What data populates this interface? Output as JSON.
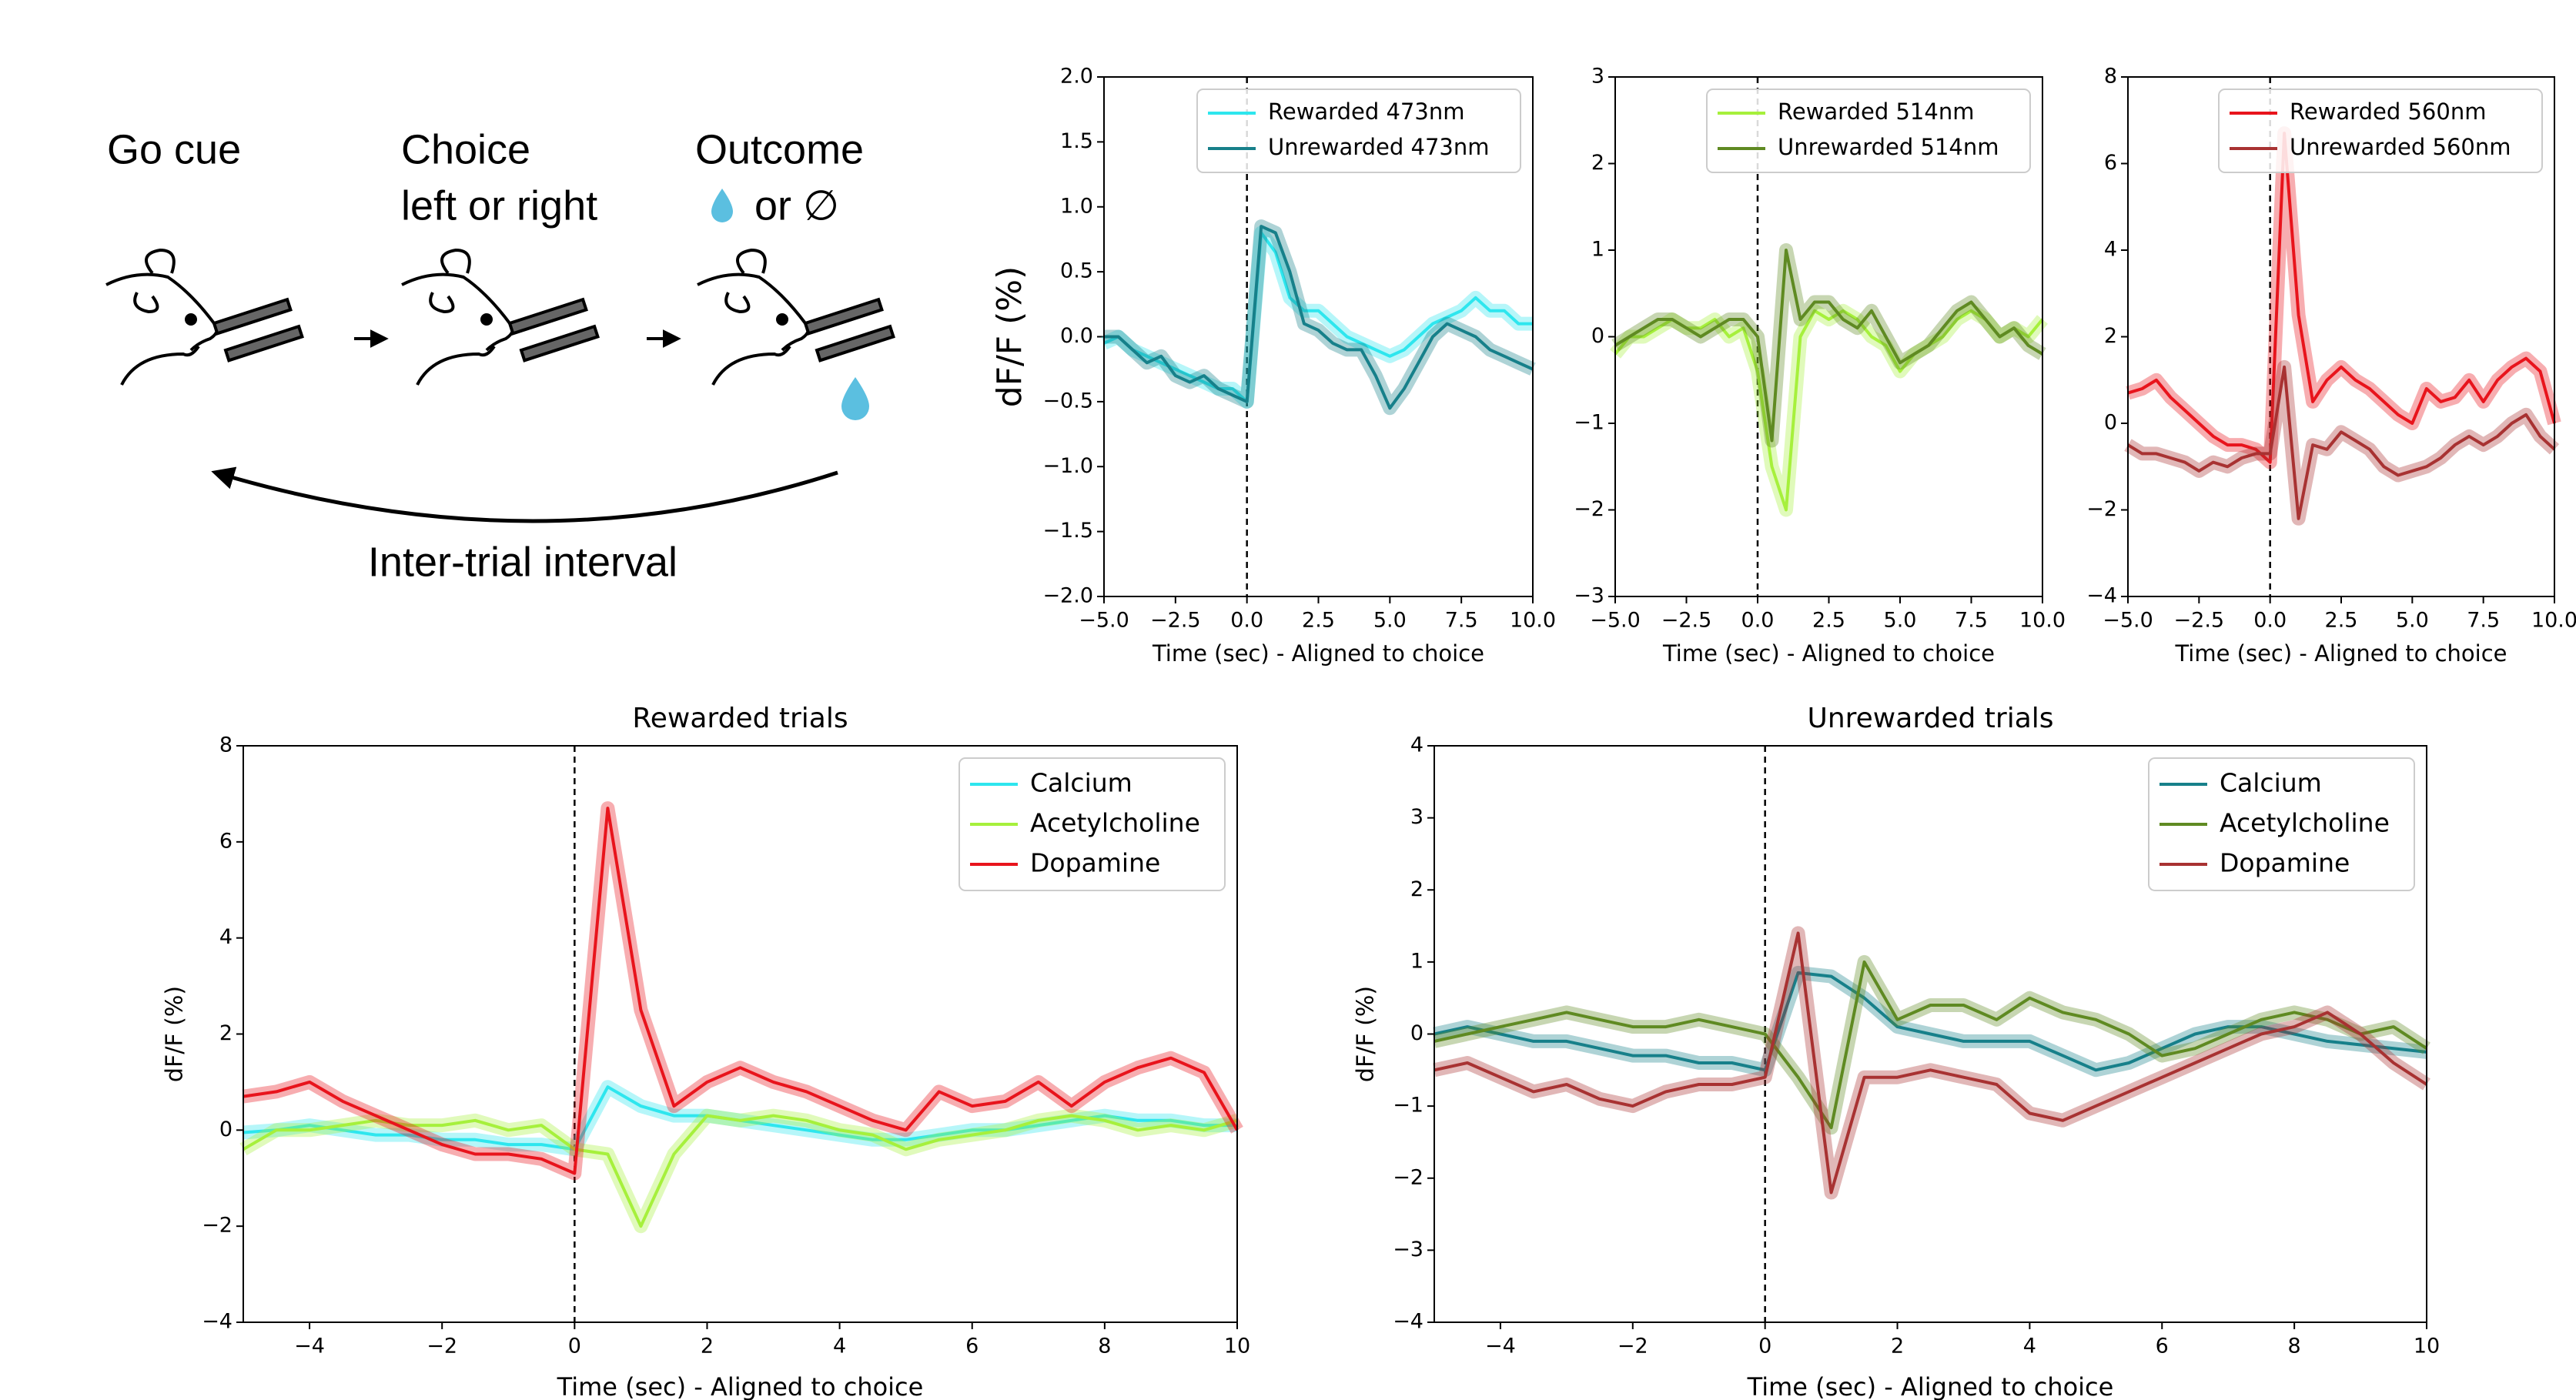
{
  "diagram": {
    "go_cue": "Go cue",
    "choice": "Choice",
    "choice_sub": "left or right",
    "outcome": "Outcome",
    "outcome_sub": "or ∅",
    "interval": "Inter-trial interval"
  },
  "chart_data": [
    {
      "type": "line",
      "ylabel": "dF/F (%)",
      "xlabel": "Time (sec) - Aligned to choice",
      "legend": "upper right",
      "vline": 0,
      "xlim": [
        -5,
        10
      ],
      "ylim": [
        -2,
        2
      ],
      "xticks": [
        {
          "value": -5,
          "label": "−5.0"
        },
        {
          "value": -2.5,
          "label": "−2.5"
        },
        {
          "value": 0,
          "label": "0.0"
        },
        {
          "value": 2.5,
          "label": "2.5"
        },
        {
          "value": 5,
          "label": "5.0"
        },
        {
          "value": 7.5,
          "label": "7.5"
        },
        {
          "value": 10,
          "label": "10.0"
        }
      ],
      "yticks": [
        {
          "value": -2,
          "label": "−2.0"
        },
        {
          "value": -1.5,
          "label": "−1.5"
        },
        {
          "value": -1,
          "label": "−1.0"
        },
        {
          "value": -0.5,
          "label": "−0.5"
        },
        {
          "value": 0,
          "label": "0.0"
        },
        {
          "value": 0.5,
          "label": "0.5"
        },
        {
          "value": 1,
          "label": "1.0"
        },
        {
          "value": 1.5,
          "label": "1.5"
        },
        {
          "value": 2,
          "label": "2.0"
        }
      ],
      "x": [
        -5,
        -4.5,
        -4,
        -3.5,
        -3,
        -2.5,
        -2,
        -1.5,
        -1,
        -0.5,
        0,
        0.5,
        1,
        1.5,
        2,
        2.5,
        3,
        3.5,
        4,
        4.5,
        5,
        5.5,
        6,
        6.5,
        7,
        7.5,
        8,
        8.5,
        9,
        9.5,
        10
      ],
      "series": [
        {
          "name": "Rewarded 473nm",
          "color": "#2ee6ee",
          "values": [
            -0.05,
            0,
            -0.1,
            -0.15,
            -0.2,
            -0.25,
            -0.3,
            -0.35,
            -0.4,
            -0.4,
            -0.5,
            0.8,
            0.65,
            0.3,
            0.2,
            0.2,
            0.1,
            0,
            -0.05,
            -0.1,
            -0.15,
            -0.1,
            0,
            0.1,
            0.15,
            0.2,
            0.3,
            0.2,
            0.2,
            0.1,
            0.1
          ]
        },
        {
          "name": "Unrewarded 473nm",
          "color": "#17808a",
          "values": [
            0,
            0,
            -0.1,
            -0.2,
            -0.15,
            -0.3,
            -0.35,
            -0.3,
            -0.4,
            -0.45,
            -0.5,
            0.85,
            0.8,
            0.5,
            0.1,
            0.05,
            -0.05,
            -0.1,
            -0.1,
            -0.3,
            -0.55,
            -0.4,
            -0.2,
            0,
            0.1,
            0.05,
            0,
            -0.1,
            -0.15,
            -0.2,
            -0.25
          ]
        }
      ]
    },
    {
      "type": "line",
      "xlabel": "Time (sec) - Aligned to choice",
      "legend": "upper right",
      "vline": 0,
      "xlim": [
        -5,
        10
      ],
      "ylim": [
        -3,
        3
      ],
      "xticks": [
        {
          "value": -5,
          "label": "−5.0"
        },
        {
          "value": -2.5,
          "label": "−2.5"
        },
        {
          "value": 0,
          "label": "0.0"
        },
        {
          "value": 2.5,
          "label": "2.5"
        },
        {
          "value": 5,
          "label": "5.0"
        },
        {
          "value": 7.5,
          "label": "7.5"
        },
        {
          "value": 10,
          "label": "10.0"
        }
      ],
      "yticks": [
        {
          "value": -3,
          "label": "−3"
        },
        {
          "value": -2,
          "label": "−2"
        },
        {
          "value": -1,
          "label": "−1"
        },
        0,
        1,
        2,
        3
      ],
      "x": [
        -5,
        -4.5,
        -4,
        -3.5,
        -3,
        -2.5,
        -2,
        -1.5,
        -1,
        -0.5,
        0,
        0.5,
        1,
        1.5,
        2,
        2.5,
        3,
        3.5,
        4,
        4.5,
        5,
        5.5,
        6,
        6.5,
        7,
        7.5,
        8,
        8.5,
        9,
        9.5,
        10
      ],
      "series": [
        {
          "name": "Rewarded 514nm",
          "color": "#a6f03c",
          "values": [
            -0.2,
            0,
            0,
            0.1,
            0.2,
            0.1,
            0.1,
            0.2,
            0,
            0.1,
            -0.4,
            -1.5,
            -2.0,
            0,
            0.3,
            0.2,
            0.3,
            0.2,
            0,
            -0.1,
            -0.4,
            -0.2,
            -0.1,
            0,
            0.2,
            0.3,
            0.2,
            0,
            0.1,
            0,
            0.2
          ]
        },
        {
          "name": "Unrewarded 514nm",
          "color": "#5f8a22",
          "values": [
            -0.1,
            0,
            0.1,
            0.2,
            0.2,
            0.1,
            0,
            0.1,
            0.2,
            0.2,
            0,
            -1.2,
            1.0,
            0.2,
            0.4,
            0.4,
            0.2,
            0.1,
            0.3,
            0,
            -0.3,
            -0.2,
            -0.1,
            0.1,
            0.3,
            0.4,
            0.2,
            0,
            0.1,
            -0.1,
            -0.2
          ]
        }
      ]
    },
    {
      "type": "line",
      "xlabel": "Time (sec) - Aligned to choice",
      "legend": "upper right",
      "vline": 0,
      "xlim": [
        -5,
        10
      ],
      "ylim": [
        -4,
        8
      ],
      "xticks": [
        {
          "value": -5,
          "label": "−5.0"
        },
        {
          "value": -2.5,
          "label": "−2.5"
        },
        {
          "value": 0,
          "label": "0.0"
        },
        {
          "value": 2.5,
          "label": "2.5"
        },
        {
          "value": 5,
          "label": "5.0"
        },
        {
          "value": 7.5,
          "label": "7.5"
        },
        {
          "value": 10,
          "label": "10.0"
        }
      ],
      "yticks": [
        {
          "value": -4,
          "label": "−4"
        },
        {
          "value": -2,
          "label": "−2"
        },
        0,
        2,
        4,
        6,
        8
      ],
      "x": [
        -5,
        -4.5,
        -4,
        -3.5,
        -3,
        -2.5,
        -2,
        -1.5,
        -1,
        -0.5,
        0,
        0.5,
        1,
        1.5,
        2,
        2.5,
        3,
        3.5,
        4,
        4.5,
        5,
        5.5,
        6,
        6.5,
        7,
        7.5,
        8,
        8.5,
        9,
        9.5,
        10
      ],
      "series": [
        {
          "name": "Rewarded 560nm",
          "color": "#e8141c",
          "values": [
            0.7,
            0.8,
            1.0,
            0.6,
            0.3,
            0,
            -0.3,
            -0.5,
            -0.5,
            -0.6,
            -0.9,
            6.7,
            2.5,
            0.5,
            1.0,
            1.3,
            1.0,
            0.8,
            0.5,
            0.2,
            0,
            0.8,
            0.5,
            0.6,
            1.0,
            0.5,
            1.0,
            1.3,
            1.5,
            1.2,
            0
          ]
        },
        {
          "name": "Unrewarded 560nm",
          "color": "#a83232",
          "values": [
            -0.5,
            -0.7,
            -0.7,
            -0.8,
            -0.9,
            -1.1,
            -0.9,
            -1.0,
            -0.8,
            -0.7,
            -0.7,
            1.3,
            -2.2,
            -0.5,
            -0.6,
            -0.2,
            -0.4,
            -0.6,
            -1.0,
            -1.2,
            -1.1,
            -1.0,
            -0.8,
            -0.5,
            -0.3,
            -0.5,
            -0.3,
            0,
            0.2,
            -0.3,
            -0.6
          ]
        }
      ]
    },
    {
      "type": "line",
      "title": "Rewarded trials",
      "ylabel": "dF/F (%)",
      "xlabel": "Time (sec) - Aligned to choice",
      "legend": "upper right",
      "vline": 0,
      "xlim": [
        -5,
        10
      ],
      "ylim": [
        -4,
        8
      ],
      "xticks": [
        {
          "value": -4,
          "label": "−4"
        },
        {
          "value": -2,
          "label": "−2"
        },
        0,
        2,
        4,
        6,
        8,
        10
      ],
      "yticks": [
        {
          "value": -4,
          "label": "−4"
        },
        {
          "value": -2,
          "label": "−2"
        },
        0,
        2,
        4,
        6,
        8
      ],
      "x": [
        -5,
        -4.5,
        -4,
        -3.5,
        -3,
        -2.5,
        -2,
        -1.5,
        -1,
        -0.5,
        0,
        0.5,
        1,
        1.5,
        2,
        2.5,
        3,
        3.5,
        4,
        4.5,
        5,
        5.5,
        6,
        6.5,
        7,
        7.5,
        8,
        8.5,
        9,
        9.5,
        10
      ],
      "series": [
        {
          "name": "Calcium",
          "color": "#2ee6ee",
          "values": [
            -0.05,
            0,
            0.1,
            0,
            -0.1,
            -0.1,
            -0.2,
            -0.2,
            -0.3,
            -0.3,
            -0.4,
            0.9,
            0.5,
            0.3,
            0.3,
            0.2,
            0.1,
            0,
            -0.1,
            -0.2,
            -0.2,
            -0.1,
            0,
            0,
            0.1,
            0.2,
            0.3,
            0.2,
            0.2,
            0.1,
            0.1
          ]
        },
        {
          "name": "Acetylcholine",
          "color": "#a6f03c",
          "values": [
            -0.4,
            0,
            0,
            0.1,
            0.2,
            0.1,
            0.1,
            0.2,
            0,
            0.1,
            -0.4,
            -0.5,
            -2.0,
            -0.5,
            0.3,
            0.2,
            0.3,
            0.2,
            0,
            -0.1,
            -0.4,
            -0.2,
            -0.1,
            0,
            0.2,
            0.3,
            0.2,
            0,
            0.1,
            0,
            0.2
          ]
        },
        {
          "name": "Dopamine",
          "color": "#e8141c",
          "values": [
            0.7,
            0.8,
            1.0,
            0.6,
            0.3,
            0,
            -0.3,
            -0.5,
            -0.5,
            -0.6,
            -0.9,
            6.7,
            2.5,
            0.5,
            1.0,
            1.3,
            1.0,
            0.8,
            0.5,
            0.2,
            0,
            0.8,
            0.5,
            0.6,
            1.0,
            0.5,
            1.0,
            1.3,
            1.5,
            1.2,
            0
          ]
        }
      ]
    },
    {
      "type": "line",
      "title": "Unrewarded trials",
      "ylabel": "dF/F (%)",
      "xlabel": "Time (sec) - Aligned to choice",
      "legend": "upper right",
      "vline": 0,
      "xlim": [
        -5,
        10
      ],
      "ylim": [
        -4,
        4
      ],
      "xticks": [
        {
          "value": -4,
          "label": "−4"
        },
        {
          "value": -2,
          "label": "−2"
        },
        0,
        2,
        4,
        6,
        8,
        10
      ],
      "yticks": [
        {
          "value": -4,
          "label": "−4"
        },
        {
          "value": -3,
          "label": "−3"
        },
        {
          "value": -2,
          "label": "−2"
        },
        {
          "value": -1,
          "label": "−1"
        },
        0,
        1,
        2,
        3,
        4
      ],
      "x": [
        -5,
        -4.5,
        -4,
        -3.5,
        -3,
        -2.5,
        -2,
        -1.5,
        -1,
        -0.5,
        0,
        0.5,
        1,
        1.5,
        2,
        2.5,
        3,
        3.5,
        4,
        4.5,
        5,
        5.5,
        6,
        6.5,
        7,
        7.5,
        8,
        8.5,
        9,
        9.5,
        10
      ],
      "series": [
        {
          "name": "Calcium",
          "color": "#17808a",
          "values": [
            0,
            0.1,
            0,
            -0.1,
            -0.1,
            -0.2,
            -0.3,
            -0.3,
            -0.4,
            -0.4,
            -0.5,
            0.85,
            0.8,
            0.5,
            0.1,
            0,
            -0.1,
            -0.1,
            -0.1,
            -0.3,
            -0.5,
            -0.4,
            -0.2,
            0,
            0.1,
            0.1,
            0,
            -0.1,
            -0.15,
            -0.2,
            -0.25
          ]
        },
        {
          "name": "Acetylcholine",
          "color": "#5f8a22",
          "values": [
            -0.1,
            0,
            0.1,
            0.2,
            0.3,
            0.2,
            0.1,
            0.1,
            0.2,
            0.1,
            0,
            -0.6,
            -1.3,
            1.0,
            0.2,
            0.4,
            0.4,
            0.2,
            0.5,
            0.3,
            0.2,
            0,
            -0.3,
            -0.2,
            0,
            0.2,
            0.3,
            0.2,
            0,
            0.1,
            -0.2
          ]
        },
        {
          "name": "Dopamine",
          "color": "#a83232",
          "values": [
            -0.5,
            -0.4,
            -0.6,
            -0.8,
            -0.7,
            -0.9,
            -1.0,
            -0.8,
            -0.7,
            -0.7,
            -0.6,
            1.4,
            -2.2,
            -0.6,
            -0.6,
            -0.5,
            -0.6,
            -0.7,
            -1.1,
            -1.2,
            -1.0,
            -0.8,
            -0.6,
            -0.4,
            -0.2,
            0,
            0.1,
            0.3,
            0,
            -0.4,
            -0.7
          ]
        }
      ]
    }
  ]
}
